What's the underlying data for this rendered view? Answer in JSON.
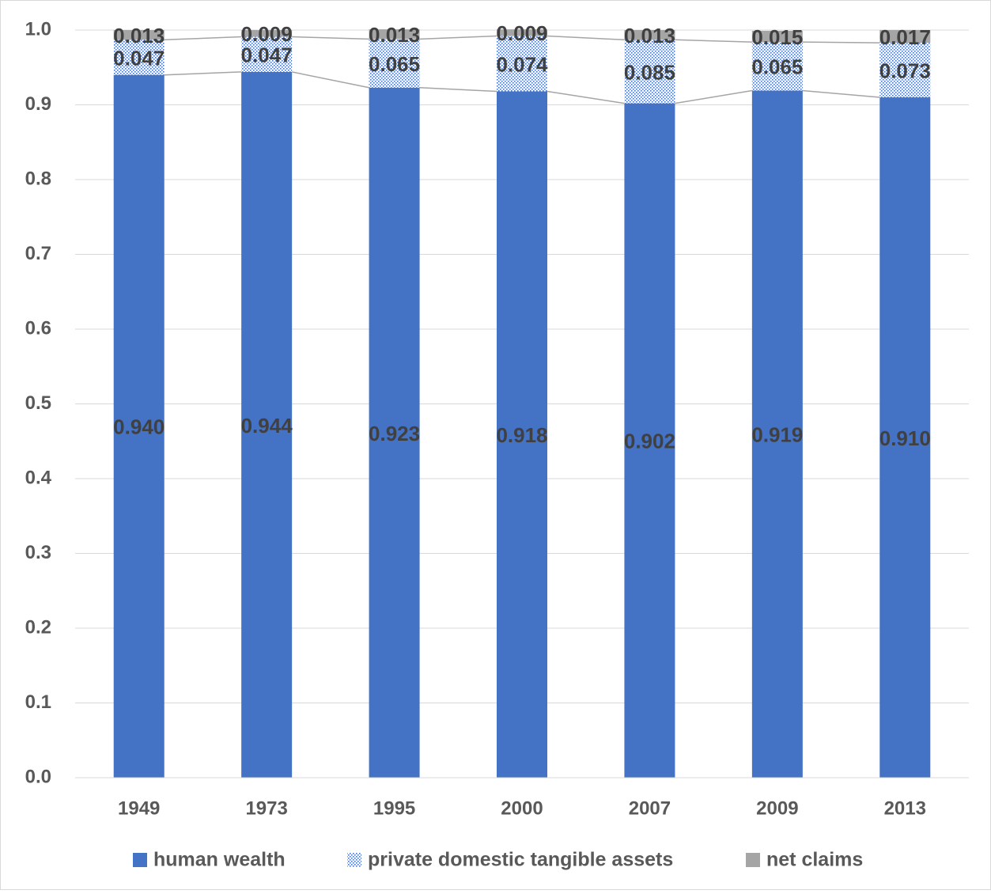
{
  "chart_data": {
    "type": "stacked_bar",
    "categories": [
      "1949",
      "1973",
      "1995",
      "2000",
      "2007",
      "2009",
      "2013"
    ],
    "series": [
      {
        "name": "human wealth",
        "color": "#4472c4",
        "values": [
          0.94,
          0.944,
          0.923,
          0.918,
          0.902,
          0.919,
          0.91
        ],
        "value_labels": [
          "0.940",
          "0.944",
          "0.923",
          "0.918",
          "0.902",
          "0.919",
          "0.910"
        ]
      },
      {
        "name": "private domestic tangible assets",
        "color": "#4472c4",
        "pattern": "dots",
        "values": [
          0.047,
          0.047,
          0.065,
          0.074,
          0.085,
          0.065,
          0.073
        ]
      },
      {
        "name": "net claims",
        "color": "#a5a5a5",
        "values": [
          0.013,
          0.009,
          0.013,
          0.009,
          0.013,
          0.015,
          0.017
        ]
      }
    ],
    "ylim": [
      0,
      1
    ],
    "yticks": [
      {
        "value": 0,
        "label": "0.0"
      },
      0.1,
      0.2,
      0.3,
      0.4,
      0.5,
      0.6,
      0.7,
      0.8,
      0.9,
      {
        "value": 1,
        "label": "1.0"
      }
    ],
    "grid": true,
    "series_lines": true,
    "legend": "bottom"
  }
}
